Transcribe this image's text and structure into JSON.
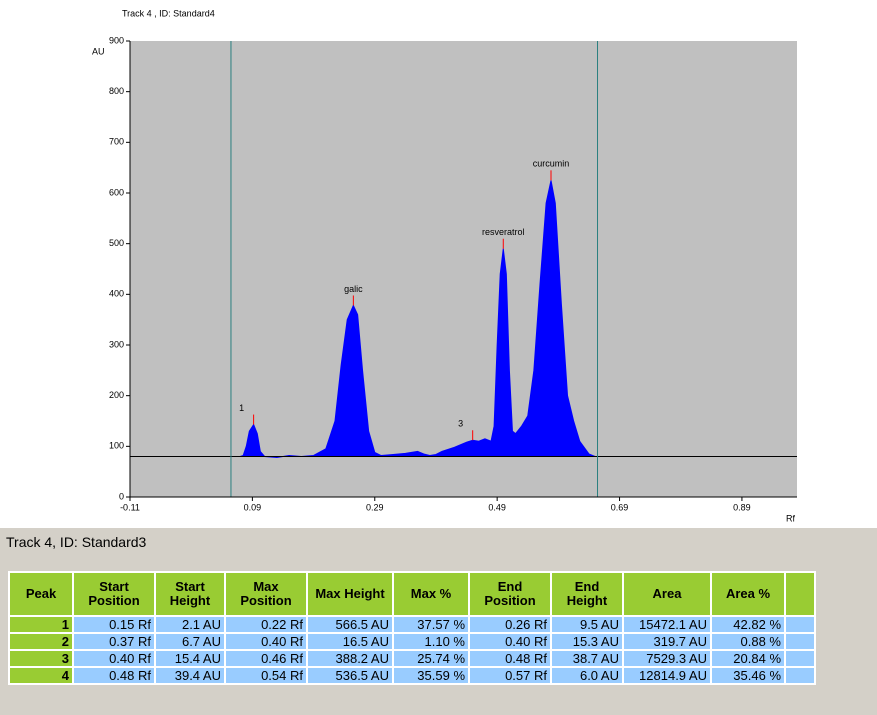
{
  "chart_data": {
    "type": "line",
    "title": "Track 4 , ID: Standard4",
    "y_label": "AU",
    "x_label": "Rf",
    "x": [
      -0.03,
      0.07,
      0.075,
      0.08,
      0.085,
      0.092,
      0.098,
      0.103,
      0.11,
      0.13,
      0.15,
      0.17,
      0.19,
      0.21,
      0.225,
      0.235,
      0.245,
      0.255,
      0.262,
      0.27,
      0.28,
      0.29,
      0.3,
      0.32,
      0.34,
      0.36,
      0.37,
      0.38,
      0.39,
      0.4,
      0.42,
      0.44,
      0.45,
      0.46,
      0.47,
      0.48,
      0.485,
      0.49,
      0.495,
      0.5,
      0.505,
      0.51,
      0.515,
      0.52,
      0.53,
      0.54,
      0.55,
      0.56,
      0.57,
      0.578,
      0.585,
      0.595,
      0.605,
      0.615,
      0.625,
      0.64,
      0.65,
      0.98
    ],
    "series": [
      {
        "color": "#0000ff",
        "values": [
          80,
          80,
          82,
          100,
          130,
          143,
          125,
          90,
          80,
          78,
          82,
          80,
          82,
          95,
          150,
          260,
          350,
          378,
          360,
          250,
          130,
          88,
          82,
          84,
          86,
          90,
          85,
          82,
          84,
          90,
          98,
          108,
          112,
          110,
          115,
          110,
          140,
          300,
          440,
          490,
          440,
          250,
          130,
          125,
          140,
          160,
          250,
          420,
          580,
          625,
          580,
          380,
          200,
          150,
          110,
          85,
          80,
          80
        ]
      }
    ],
    "baseline": 80,
    "markers": [
      0.055,
      0.654
    ],
    "annotations": [
      {
        "text": "1",
        "x": 0.092,
        "y": 143
      },
      {
        "text": "galic",
        "x": 0.255,
        "y": 378
      },
      {
        "text": "3",
        "x": 0.45,
        "y": 112
      },
      {
        "text": "resveratrol",
        "x": 0.5,
        "y": 490
      },
      {
        "text": "curcumin",
        "x": 0.578,
        "y": 625
      }
    ],
    "xlim": [
      -0.11,
      0.98
    ],
    "ylim": [
      0,
      900
    ],
    "xticks": [
      -0.11,
      0.09,
      0.29,
      0.49,
      0.69,
      0.89
    ],
    "yticks": [
      0,
      100,
      200,
      300,
      400,
      500,
      600,
      700,
      800,
      900
    ]
  },
  "table": {
    "title": "Track 4, ID: Standard3",
    "header": [
      "Peak",
      "Start Position",
      "Start Height",
      "Max Position",
      "Max Height",
      "Max %",
      "End Position",
      "End Height",
      "Area",
      "Area %"
    ],
    "rows": [
      [
        "1",
        "0.15 Rf",
        "2.1 AU",
        "0.22 Rf",
        "566.5 AU",
        "37.57 %",
        "0.26 Rf",
        "9.5 AU",
        "15472.1 AU",
        "42.82 %"
      ],
      [
        "2",
        "0.37 Rf",
        "6.7 AU",
        "0.40 Rf",
        "16.5 AU",
        "1.10 %",
        "0.40 Rf",
        "15.3 AU",
        "319.7 AU",
        "0.88 %"
      ],
      [
        "3",
        "0.40 Rf",
        "15.4 AU",
        "0.46 Rf",
        "388.2 AU",
        "25.74 %",
        "0.48 Rf",
        "38.7 AU",
        "7529.3 AU",
        "20.84 %"
      ],
      [
        "4",
        "0.48 Rf",
        "39.4 AU",
        "0.54 Rf",
        "536.5 AU",
        "35.59 %",
        "0.57 Rf",
        "6.0 AU",
        "12814.9 AU",
        "35.46 %"
      ]
    ]
  }
}
